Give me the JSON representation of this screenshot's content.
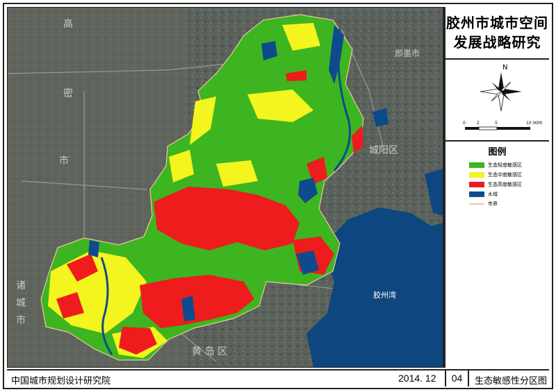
{
  "title": {
    "line1": "胶州市城市空间",
    "line2": "发展战略研究"
  },
  "compass": {
    "north_label": "N"
  },
  "scale_bar": {
    "ticks": [
      "0",
      "2",
      "5",
      "10 (KM)"
    ]
  },
  "legend": {
    "title": "图例",
    "items": [
      {
        "label": "生态轻度敏感区",
        "color": "#3cb521"
      },
      {
        "label": "生态中度敏感区",
        "color": "#f4f41e"
      },
      {
        "label": "生态高度敏感区",
        "color": "#ee1c1c"
      },
      {
        "label": "水域",
        "color": "#0f4b8c"
      },
      {
        "label": "市界",
        "color": "#f2c7a3"
      }
    ]
  },
  "map_labels": {
    "jiaozhou_bay": "胶州湾",
    "chengyang": "城阳区",
    "jimo": "即墨市",
    "gaomi_top": "高",
    "gaomi_mid": "密",
    "gaomi_low": "市",
    "zhucheng_1": "诸",
    "zhucheng_2": "城",
    "zhucheng_3": "市",
    "huangdao": "黄 岛 区"
  },
  "footer": {
    "organization": "中国城市规划设计研究院",
    "date": "2014. 12",
    "sheet_number": "04",
    "sheet_name": "生态敏感性分区图"
  }
}
